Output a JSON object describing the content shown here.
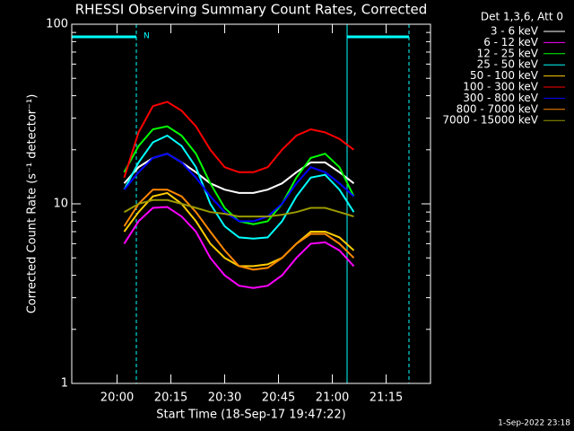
{
  "chart_data": {
    "type": "line",
    "title": "RHESSI Observing Summary Count Rates, Corrected",
    "x_label": "Start Time (18-Sep-17 19:47:22)",
    "y_label": "Corrected Count Rate (s⁻¹ detector⁻¹)",
    "legend_title": "Det 1,3,6, Att 0",
    "timestamp": "1-Sep-2022 23:18",
    "night_label": "N",
    "log_y": true,
    "xlim": [
      "19:47:22",
      "21:27:22"
    ],
    "xticks": [
      "20:00",
      "20:15",
      "20:30",
      "20:45",
      "21:00",
      "21:15"
    ],
    "ylim": [
      1,
      100
    ],
    "yticks": [
      1,
      10,
      100
    ],
    "yminor_ticks": [
      2,
      3,
      4,
      5,
      6,
      7,
      8,
      9,
      20,
      30,
      40,
      50,
      60,
      70,
      80,
      90
    ],
    "x": [
      "20:02",
      "20:06",
      "20:10",
      "20:14",
      "20:18",
      "20:22",
      "20:26",
      "20:30",
      "20:34",
      "20:38",
      "20:42",
      "20:46",
      "20:50",
      "20:54",
      "20:58",
      "21:02",
      "21:06"
    ],
    "series": [
      {
        "name": "3 - 6 keV",
        "color": "#ffffff",
        "values": [
          13,
          16,
          18,
          19,
          17,
          15,
          13,
          12,
          11.5,
          11.5,
          12,
          13,
          15,
          17,
          17,
          15,
          13
        ]
      },
      {
        "name": "6 - 12 keV",
        "color": "#ff00ff",
        "values": [
          6,
          8,
          9.5,
          9.6,
          8.5,
          7,
          5,
          4,
          3.5,
          3.4,
          3.5,
          4,
          5,
          6,
          6.1,
          5.5,
          4.5
        ]
      },
      {
        "name": "12 - 25 keV",
        "color": "#00ff00",
        "values": [
          15,
          21,
          26,
          27,
          24,
          19,
          13,
          9.5,
          8,
          7.7,
          8,
          10,
          14,
          18,
          19,
          16,
          11
        ]
      },
      {
        "name": "25 - 50 keV",
        "color": "#00ffff",
        "values": [
          12,
          17,
          22,
          24,
          21,
          16,
          10,
          7.5,
          6.5,
          6.4,
          6.5,
          8,
          11,
          14,
          14.5,
          12,
          9
        ]
      },
      {
        "name": "50 - 100 keV",
        "color": "#ffcc00",
        "values": [
          7,
          9,
          11,
          11.5,
          10,
          8,
          6,
          5,
          4.5,
          4.5,
          4.6,
          5,
          6,
          7,
          7,
          6.5,
          5.5
        ]
      },
      {
        "name": "100 - 300 keV",
        "color": "#ff0000",
        "values": [
          14,
          25,
          35,
          37,
          33,
          27,
          20,
          16,
          15,
          15,
          16,
          20,
          24,
          26,
          25,
          23,
          20
        ]
      },
      {
        "name": "300 - 800 keV",
        "color": "#0000ff",
        "values": [
          12,
          15,
          18,
          19,
          17,
          14,
          11,
          9,
          8,
          8,
          8.5,
          10,
          13,
          16,
          15,
          13,
          11
        ]
      },
      {
        "name": "800 - 7000 keV",
        "color": "#ff8800",
        "values": [
          7.5,
          10,
          12,
          12,
          11,
          9,
          7,
          5.5,
          4.5,
          4.3,
          4.4,
          5,
          6,
          6.8,
          6.8,
          6,
          5
        ]
      },
      {
        "name": "7000 - 15000 keV",
        "color": "#999900",
        "values": [
          9,
          10,
          10.5,
          10.5,
          10,
          9.5,
          9,
          8.8,
          8.5,
          8.5,
          8.5,
          8.7,
          9,
          9.5,
          9.5,
          9,
          8.5
        ]
      }
    ]
  }
}
